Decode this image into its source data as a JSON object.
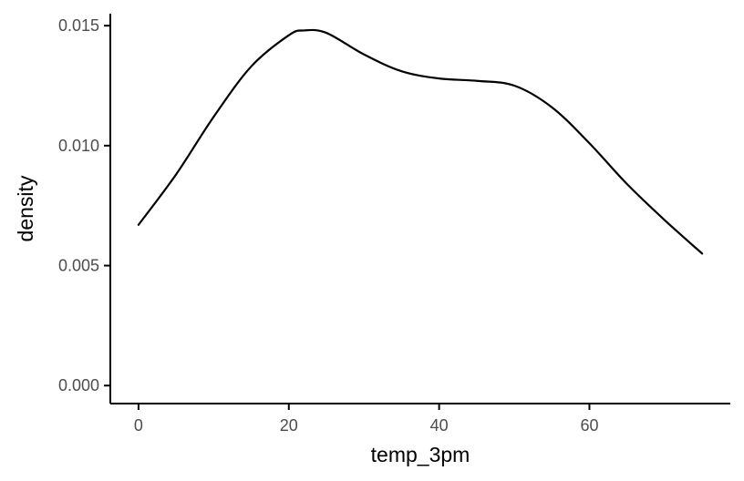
{
  "chart_data": {
    "type": "line",
    "xlabel": "temp_3pm",
    "ylabel": "density",
    "xlim": [
      -3.75,
      78.75
    ],
    "ylim": [
      -0.00075,
      0.0155
    ],
    "x_ticks": [
      0,
      20,
      40,
      60
    ],
    "x_tick_labels": [
      "0",
      "20",
      "40",
      "60"
    ],
    "y_ticks": [
      0.0,
      0.005,
      0.01,
      0.015
    ],
    "y_tick_labels": [
      "0.000",
      "0.005",
      "0.010",
      "0.015"
    ],
    "grid": false,
    "series": [
      {
        "color": "#000000",
        "x": [
          0,
          5,
          10,
          15,
          20,
          22,
          25,
          30,
          35,
          40,
          45,
          50,
          55,
          60,
          65,
          70,
          75
        ],
        "y": [
          0.0067,
          0.0088,
          0.0112,
          0.0133,
          0.0146,
          0.0148,
          0.0147,
          0.0138,
          0.0131,
          0.0128,
          0.0127,
          0.0125,
          0.0116,
          0.0101,
          0.0084,
          0.0069,
          0.0055
        ]
      }
    ]
  }
}
